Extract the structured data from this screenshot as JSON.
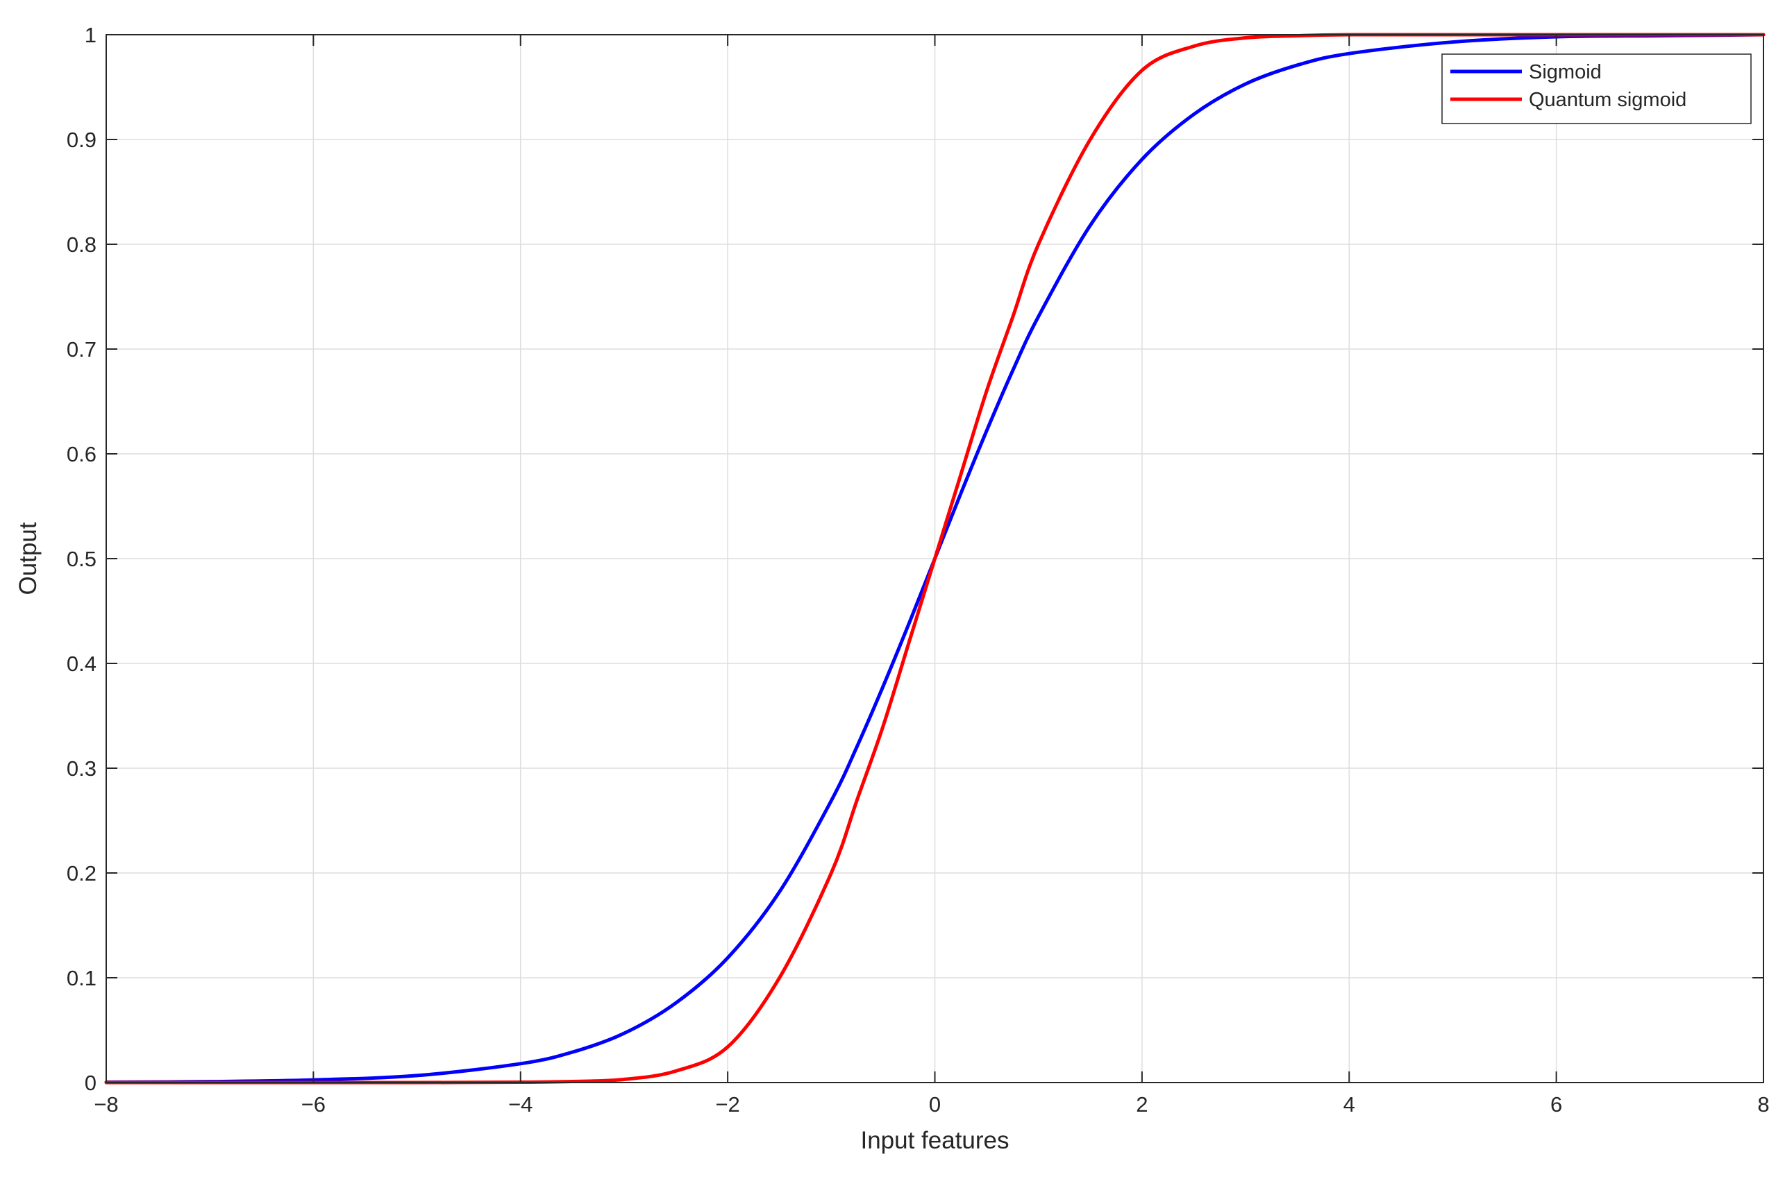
{
  "chart_data": {
    "type": "line",
    "title": "",
    "xlabel": "Input features",
    "ylabel": "Output",
    "xlim": [
      -8,
      8
    ],
    "ylim": [
      0,
      1
    ],
    "xticks": [
      -8,
      -6,
      -4,
      -2,
      0,
      2,
      4,
      6,
      8
    ],
    "xtick_labels": [
      "−8",
      "−6",
      "−4",
      "−2",
      "0",
      "2",
      "4",
      "6",
      "8"
    ],
    "yticks": [
      0,
      0.1,
      0.2,
      0.3,
      0.4,
      0.5,
      0.6,
      0.7,
      0.8,
      0.9,
      1
    ],
    "ytick_labels": [
      "0",
      "0.1",
      "0.2",
      "0.3",
      "0.4",
      "0.5",
      "0.6",
      "0.7",
      "0.8",
      "0.9",
      "1"
    ],
    "grid": true,
    "legend_position": "top-right",
    "x": [
      -8,
      -7,
      -6,
      -5,
      -4,
      -3.5,
      -3,
      -2.5,
      -2,
      -1.5,
      -1,
      -0.75,
      -0.5,
      -0.25,
      0,
      0.25,
      0.5,
      0.75,
      1,
      1.5,
      2,
      2.5,
      3,
      3.5,
      4,
      5,
      6,
      7,
      8
    ],
    "series": [
      {
        "name": "Sigmoid",
        "color": "#0000ff",
        "values": [
          0.0003,
          0.0009,
          0.0025,
          0.0067,
          0.018,
          0.029,
          0.047,
          0.076,
          0.119,
          0.182,
          0.269,
          0.321,
          0.378,
          0.438,
          0.5,
          0.562,
          0.622,
          0.679,
          0.731,
          0.818,
          0.881,
          0.924,
          0.953,
          0.971,
          0.982,
          0.993,
          0.998,
          0.999,
          1.0
        ]
      },
      {
        "name": "Quantum sigmoid",
        "color": "#ff0000",
        "values": [
          0.0,
          0.0,
          0.0,
          0.0,
          0.0003,
          0.001,
          0.003,
          0.011,
          0.034,
          0.1,
          0.2,
          0.27,
          0.34,
          0.42,
          0.5,
          0.58,
          0.66,
          0.73,
          0.8,
          0.9,
          0.966,
          0.989,
          0.997,
          0.999,
          1.0,
          1.0,
          1.0,
          1.0,
          1.0
        ]
      }
    ]
  }
}
